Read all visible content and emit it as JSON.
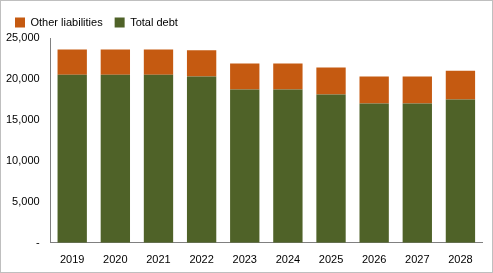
{
  "chart_data": {
    "type": "bar",
    "stacked": true,
    "grid": false,
    "legend": "top",
    "categories": [
      "2019",
      "2020",
      "2021",
      "2022",
      "2023",
      "2024",
      "2025",
      "2026",
      "2027",
      "2028"
    ],
    "series": [
      {
        "name": "Total debt",
        "color": "#4f6228",
        "values": [
          20500,
          20500,
          20500,
          20300,
          18700,
          18700,
          18100,
          17000,
          17000,
          17500
        ]
      },
      {
        "name": "Other liabilities",
        "color": "#c55a11",
        "values": [
          3100,
          3100,
          3100,
          3200,
          3200,
          3200,
          3300,
          3300,
          3300,
          3500
        ]
      }
    ],
    "ylim": [
      0,
      25000
    ],
    "yticks": [
      {
        "value": 0,
        "label": "-"
      },
      {
        "value": 5000,
        "label": "5,000"
      },
      {
        "value": 10000,
        "label": "10,000"
      },
      {
        "value": 15000,
        "label": "15,000"
      },
      {
        "value": 20000,
        "label": "20,000"
      },
      {
        "value": 25000,
        "label": "25,000"
      }
    ]
  }
}
